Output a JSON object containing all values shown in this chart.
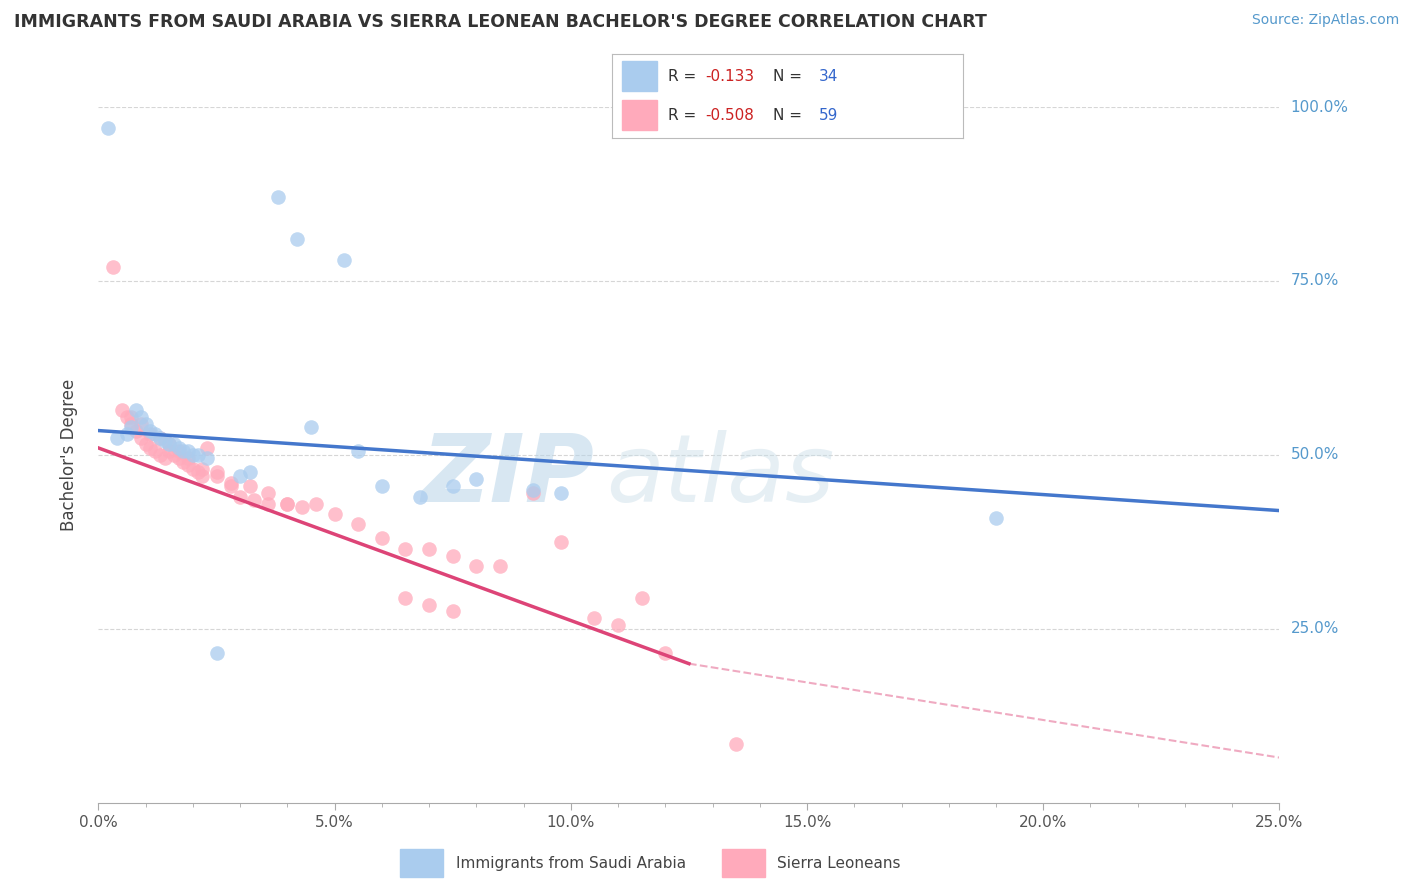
{
  "title": "IMMIGRANTS FROM SAUDI ARABIA VS SIERRA LEONEAN BACHELOR'S DEGREE CORRELATION CHART",
  "source_text": "Source: ZipAtlas.com",
  "ylabel": "Bachelor's Degree",
  "xlim": [
    0.0,
    0.25
  ],
  "ylim": [
    0.0,
    1.0
  ],
  "xtick_labels": [
    "0.0%",
    "",
    "",
    "",
    "",
    "",
    "",
    "",
    "",
    "",
    "5.0%",
    "",
    "",
    "",
    "",
    "",
    "",
    "",
    "",
    "",
    "10.0%",
    "",
    "",
    "",
    "",
    "",
    "",
    "",
    "",
    "",
    "15.0%",
    "",
    "",
    "",
    "",
    "",
    "",
    "",
    "",
    "",
    "20.0%",
    "",
    "",
    "",
    "",
    "",
    "",
    "",
    "",
    "",
    "25.0%"
  ],
  "xtick_vals_major": [
    0.0,
    0.05,
    0.1,
    0.15,
    0.2,
    0.25
  ],
  "xtick_major_labels": [
    "0.0%",
    "5.0%",
    "10.0%",
    "15.0%",
    "20.0%",
    "25.0%"
  ],
  "ytick_vals": [
    0.25,
    0.5,
    0.75,
    1.0
  ],
  "ytick_labels": [
    "25.0%",
    "50.0%",
    "75.0%",
    "100.0%"
  ],
  "blue_R": -0.133,
  "blue_N": 34,
  "pink_R": -0.508,
  "pink_N": 59,
  "blue_color": "#aaccee",
  "pink_color": "#ffaabb",
  "blue_line_color": "#4477cc",
  "pink_line_color": "#dd4477",
  "watermark_zip": "ZIP",
  "watermark_atlas": "atlas",
  "legend_label1": "Immigrants from Saudi Arabia",
  "legend_label2": "Sierra Leoneans",
  "blue_scatter_x": [
    0.002,
    0.038,
    0.042,
    0.052,
    0.008,
    0.009,
    0.01,
    0.011,
    0.012,
    0.013,
    0.014,
    0.015,
    0.017,
    0.019,
    0.021,
    0.023,
    0.004,
    0.006,
    0.007,
    0.016,
    0.018,
    0.02,
    0.075,
    0.08,
    0.092,
    0.098,
    0.045,
    0.055,
    0.06,
    0.068,
    0.19,
    0.032,
    0.025,
    0.03
  ],
  "blue_scatter_y": [
    0.97,
    0.87,
    0.81,
    0.78,
    0.565,
    0.555,
    0.545,
    0.535,
    0.53,
    0.525,
    0.52,
    0.515,
    0.51,
    0.505,
    0.5,
    0.495,
    0.525,
    0.53,
    0.54,
    0.515,
    0.505,
    0.5,
    0.455,
    0.465,
    0.45,
    0.445,
    0.54,
    0.505,
    0.455,
    0.44,
    0.41,
    0.475,
    0.215,
    0.47
  ],
  "pink_scatter_x": [
    0.003,
    0.005,
    0.006,
    0.007,
    0.008,
    0.009,
    0.01,
    0.011,
    0.012,
    0.013,
    0.014,
    0.015,
    0.016,
    0.017,
    0.018,
    0.019,
    0.02,
    0.021,
    0.022,
    0.023,
    0.007,
    0.009,
    0.011,
    0.013,
    0.015,
    0.017,
    0.019,
    0.025,
    0.028,
    0.03,
    0.033,
    0.036,
    0.04,
    0.043,
    0.046,
    0.05,
    0.055,
    0.06,
    0.065,
    0.07,
    0.075,
    0.08,
    0.085,
    0.092,
    0.098,
    0.065,
    0.07,
    0.075,
    0.105,
    0.11,
    0.115,
    0.12,
    0.022,
    0.025,
    0.028,
    0.032,
    0.036,
    0.04,
    0.135
  ],
  "pink_scatter_y": [
    0.77,
    0.565,
    0.555,
    0.545,
    0.535,
    0.525,
    0.515,
    0.51,
    0.505,
    0.5,
    0.495,
    0.505,
    0.5,
    0.495,
    0.49,
    0.485,
    0.48,
    0.475,
    0.47,
    0.51,
    0.555,
    0.545,
    0.53,
    0.525,
    0.515,
    0.505,
    0.495,
    0.475,
    0.455,
    0.44,
    0.435,
    0.43,
    0.43,
    0.425,
    0.43,
    0.415,
    0.4,
    0.38,
    0.365,
    0.365,
    0.355,
    0.34,
    0.34,
    0.445,
    0.375,
    0.295,
    0.285,
    0.275,
    0.265,
    0.255,
    0.295,
    0.215,
    0.48,
    0.47,
    0.46,
    0.455,
    0.445,
    0.43,
    0.085
  ],
  "blue_trend": [
    0.0,
    0.535,
    0.25,
    0.42
  ],
  "pink_trend_solid": [
    0.0,
    0.51,
    0.125,
    0.2
  ],
  "pink_trend_dashed": [
    0.125,
    0.2,
    0.25,
    0.065
  ]
}
